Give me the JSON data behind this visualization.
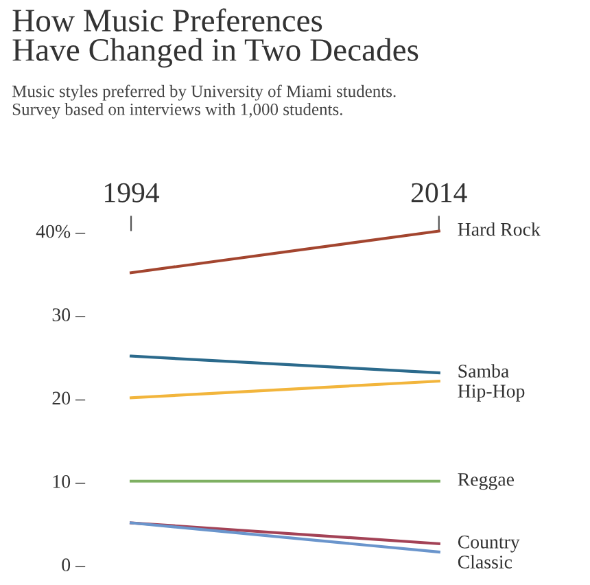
{
  "chart_data": {
    "type": "line",
    "title": "How Music Preferences\nHave Changed in Two Decades",
    "subtitle": "Music styles preferred by University of Miami students.\nSurvey based on interviews with 1,000 students.",
    "categories": [
      "1994",
      "2014"
    ],
    "series": [
      {
        "name": "Hard Rock",
        "color": "#a3452f",
        "values": [
          35,
          40
        ]
      },
      {
        "name": "Samba",
        "color": "#2b6a8c",
        "values": [
          25,
          23
        ]
      },
      {
        "name": "Hip-Hop",
        "color": "#f2b53c",
        "values": [
          20,
          22
        ]
      },
      {
        "name": "Reggae",
        "color": "#7eb062",
        "values": [
          10,
          10
        ]
      },
      {
        "name": "Country",
        "color": "#a34256",
        "values": [
          5,
          2.5
        ]
      },
      {
        "name": "Classic",
        "color": "#6a95cc",
        "values": [
          5,
          1.5
        ]
      }
    ],
    "ylim": [
      0,
      40
    ],
    "yticks": [
      {
        "value": 0,
        "label": "0 –"
      },
      {
        "value": 10,
        "label": "10 –"
      },
      {
        "value": 20,
        "label": "20 –"
      },
      {
        "value": 30,
        "label": "30 –"
      },
      {
        "value": 40,
        "label": "40% –"
      }
    ],
    "grid": false,
    "legend": false,
    "marker": "none",
    "line_style": "solid"
  }
}
